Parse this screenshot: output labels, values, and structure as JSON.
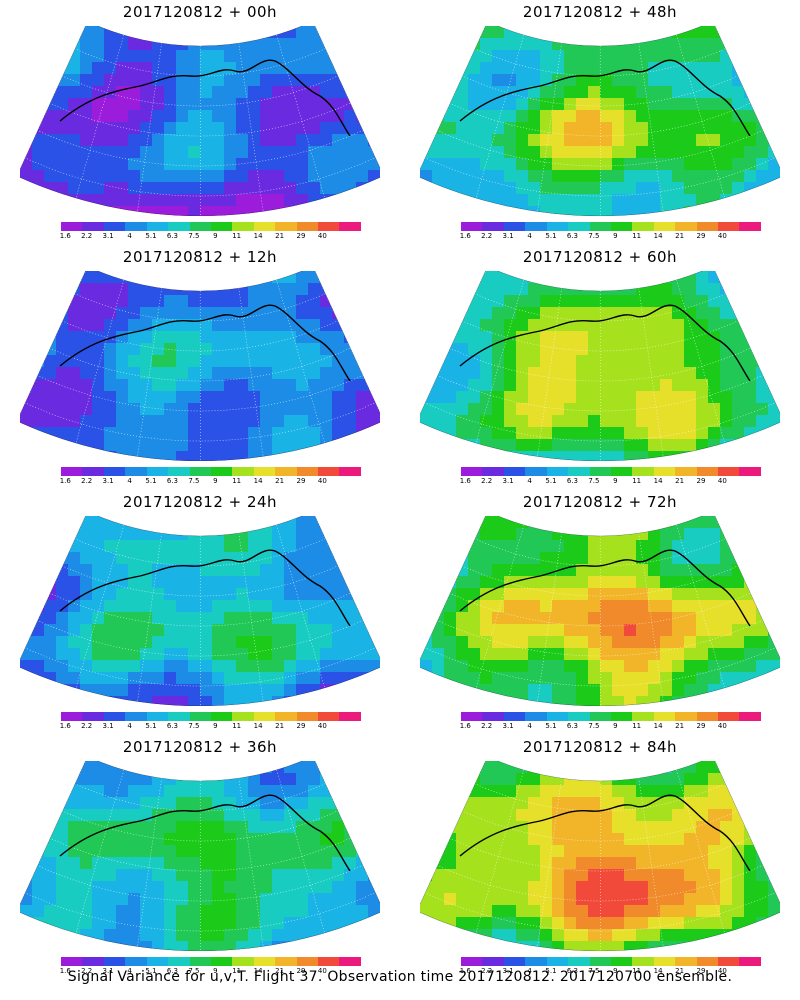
{
  "chart_data": {
    "type": "heatmap",
    "caption": "Signal Variance for u,v,T. Flight 37. Observation time 2017120812. 2017120700 ensemble.",
    "colorbar": {
      "ticks": [
        "1.6",
        "2.2",
        "3.1",
        "4",
        "5.1",
        "6.3",
        "7.5",
        "9",
        "11",
        "14",
        "21",
        "29",
        "40"
      ],
      "colors": [
        "#9b1ddb",
        "#6a2ae0",
        "#2b52e6",
        "#1c8ce6",
        "#19b3e6",
        "#18ccc2",
        "#21c855",
        "#1ccb19",
        "#a6e11d",
        "#e6e02a",
        "#f2b52a",
        "#f08a2a",
        "#f24a3a",
        "#ec1a7c"
      ]
    },
    "panels": [
      {
        "title": "2017120812 + 00h",
        "intensity": 0.25
      },
      {
        "title": "2017120812 + 48h",
        "intensity": 0.62
      },
      {
        "title": "2017120812 + 12h",
        "intensity": 0.33
      },
      {
        "title": "2017120812 + 60h",
        "intensity": 0.7
      },
      {
        "title": "2017120812 + 24h",
        "intensity": 0.45
      },
      {
        "title": "2017120812 + 72h",
        "intensity": 0.78
      },
      {
        "title": "2017120812 + 36h",
        "intensity": 0.52
      },
      {
        "title": "2017120812 + 84h",
        "intensity": 0.85
      }
    ]
  }
}
